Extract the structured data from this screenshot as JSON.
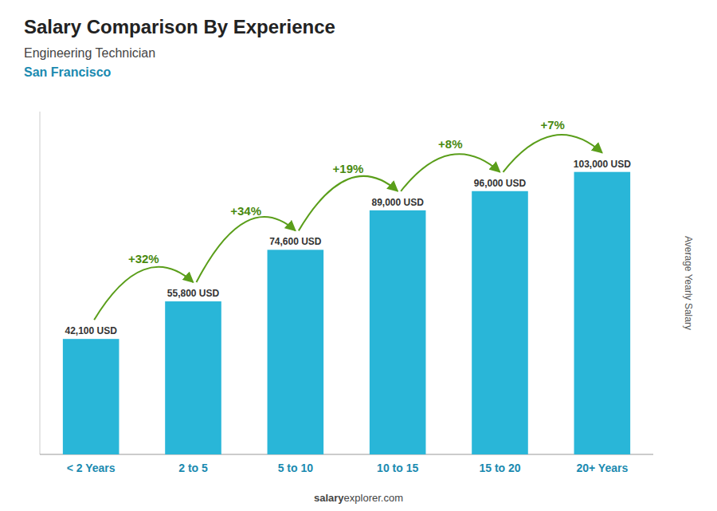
{
  "chart_data": {
    "type": "bar",
    "title": "Salary Comparison By Experience",
    "subtitle": "Engineering Technician",
    "city": "San Francisco",
    "categories": [
      "< 2 Years",
      "2 to 5",
      "5 to 10",
      "10 to 15",
      "15 to 20",
      "20+ Years"
    ],
    "values": [
      42100,
      55800,
      74600,
      89000,
      96000,
      103000
    ],
    "value_labels": [
      "42,100 USD",
      "55,800 USD",
      "74,600 USD",
      "89,000 USD",
      "96,000 USD",
      "103,000 USD"
    ],
    "data_labels": true,
    "annotations": [
      "+32%",
      "+34%",
      "+19%",
      "+8%",
      "+7%"
    ],
    "ylabel": "Average Yearly Salary",
    "footer": [
      "salary",
      "explorer.com"
    ],
    "ylim": [
      0,
      125000
    ],
    "tick_labels": "x",
    "grid": false,
    "color": "#29b6d8"
  }
}
